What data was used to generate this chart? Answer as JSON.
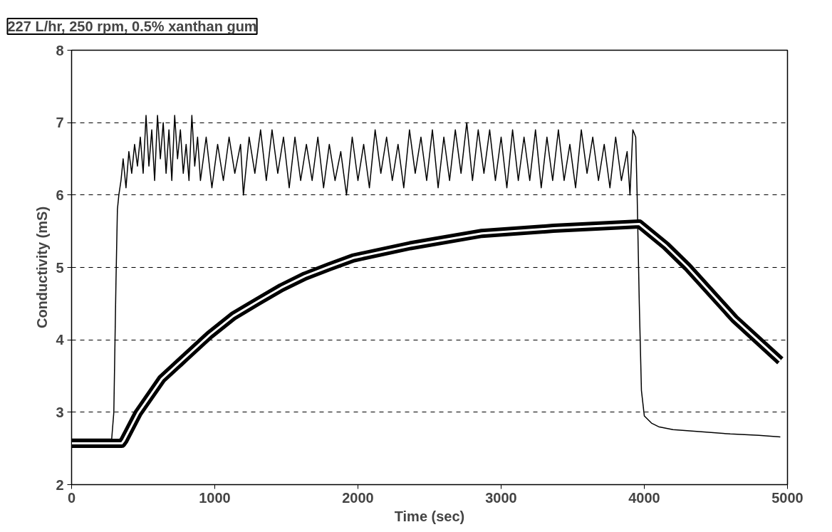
{
  "chart_data": {
    "type": "line",
    "title": "227 L/hr, 250 rpm, 0.5% xanthan gum",
    "xlabel": "Time (sec)",
    "ylabel": "Conductivity (mS)",
    "xlim": [
      0,
      5000
    ],
    "ylim": [
      2,
      8
    ],
    "xticks": [
      0,
      1000,
      2000,
      3000,
      4000,
      5000
    ],
    "yticks": [
      2,
      3,
      4,
      5,
      6,
      7,
      8
    ],
    "grid": "y",
    "marker": "none",
    "line_style": "solid",
    "series": [
      {
        "color": "#000000",
        "x": [
          0,
          280,
          295,
          310,
          320,
          330,
          345,
          360,
          380,
          400,
          420,
          440,
          460,
          480,
          500,
          520,
          540,
          560,
          580,
          600,
          620,
          640,
          660,
          680,
          700,
          720,
          740,
          760,
          780,
          800,
          820,
          840,
          860,
          880,
          900,
          940,
          980,
          1020,
          1060,
          1100,
          1140,
          1180,
          1200,
          1240,
          1280,
          1320,
          1360,
          1400,
          1440,
          1480,
          1520,
          1560,
          1600,
          1640,
          1680,
          1720,
          1760,
          1800,
          1840,
          1880,
          1920,
          1960,
          2000,
          2040,
          2080,
          2120,
          2160,
          2200,
          2240,
          2280,
          2320,
          2360,
          2400,
          2440,
          2480,
          2520,
          2560,
          2600,
          2640,
          2680,
          2720,
          2760,
          2800,
          2840,
          2880,
          2920,
          2960,
          3000,
          3040,
          3080,
          3120,
          3160,
          3200,
          3240,
          3280,
          3320,
          3360,
          3400,
          3440,
          3480,
          3520,
          3560,
          3600,
          3640,
          3680,
          3720,
          3760,
          3800,
          3840,
          3880,
          3900,
          3920,
          3940,
          3950,
          3965,
          3980,
          4000,
          4050,
          4100,
          4200,
          4400,
          4600,
          4800,
          4950
        ],
        "values": [
          2.63,
          2.63,
          3.0,
          4.8,
          5.8,
          6.0,
          6.2,
          6.5,
          6.1,
          6.6,
          6.3,
          6.7,
          6.4,
          6.8,
          6.3,
          7.1,
          6.4,
          6.9,
          6.2,
          7.1,
          6.5,
          7.0,
          6.3,
          6.9,
          6.2,
          7.1,
          6.5,
          6.9,
          6.3,
          6.7,
          6.2,
          7.1,
          6.4,
          6.8,
          6.2,
          6.8,
          6.1,
          6.7,
          6.2,
          6.8,
          6.3,
          6.7,
          6.0,
          6.8,
          6.3,
          6.9,
          6.2,
          6.9,
          6.3,
          6.8,
          6.1,
          6.8,
          6.2,
          6.7,
          6.2,
          6.8,
          6.1,
          6.7,
          6.2,
          6.6,
          6.0,
          6.8,
          6.2,
          6.7,
          6.1,
          6.9,
          6.3,
          6.8,
          6.2,
          6.7,
          6.1,
          6.9,
          6.3,
          6.8,
          6.2,
          6.9,
          6.1,
          6.8,
          6.2,
          6.9,
          6.3,
          7.0,
          6.2,
          6.9,
          6.3,
          6.9,
          6.2,
          6.8,
          6.1,
          6.9,
          6.2,
          6.8,
          6.2,
          6.9,
          6.1,
          6.8,
          6.2,
          6.9,
          6.2,
          6.7,
          6.1,
          6.9,
          6.3,
          6.8,
          6.2,
          6.7,
          6.1,
          6.8,
          6.2,
          6.6,
          6.0,
          6.9,
          6.8,
          6.0,
          4.5,
          3.3,
          2.95,
          2.85,
          2.8,
          2.76,
          2.73,
          2.7,
          2.68,
          2.66
        ]
      },
      {
        "color": "#000000",
        "x": [
          0,
          350,
          365,
          465,
          630,
          800,
          965,
          1130,
          1300,
          1465,
          1630,
          1800,
          1965,
          2365,
          2865,
          3365,
          3965,
          4150,
          4300,
          4630,
          4950
        ],
        "values": [
          2.57,
          2.57,
          2.61,
          2.99,
          3.46,
          3.77,
          4.07,
          4.33,
          4.53,
          4.72,
          4.88,
          5.01,
          5.13,
          5.3,
          5.47,
          5.54,
          5.6,
          5.3,
          5.01,
          4.29,
          3.71
        ]
      }
    ]
  }
}
